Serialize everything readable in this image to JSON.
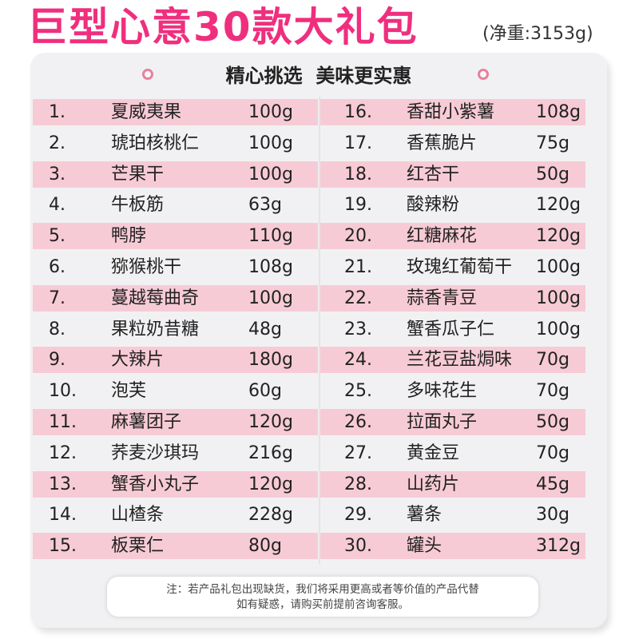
{
  "header": {
    "title": "巨型心意30款大礼包",
    "net_weight": "(净重:3153g)"
  },
  "board": {
    "subtitle": "精心挑选  美味更实惠"
  },
  "items_left": [
    {
      "num": "1.",
      "name": "夏威夷果",
      "weight": "100g"
    },
    {
      "num": "2.",
      "name": "琥珀核桃仁",
      "weight": "100g"
    },
    {
      "num": "3.",
      "name": "芒果干",
      "weight": "100g"
    },
    {
      "num": "4.",
      "name": "牛板筋",
      "weight": "63g"
    },
    {
      "num": "5.",
      "name": "鸭脖",
      "weight": "110g"
    },
    {
      "num": "6.",
      "name": "猕猴桃干",
      "weight": "108g"
    },
    {
      "num": "7.",
      "name": "蔓越莓曲奇",
      "weight": "100g"
    },
    {
      "num": "8.",
      "name": "果粒奶昔糖",
      "weight": "48g"
    },
    {
      "num": "9.",
      "name": "大辣片",
      "weight": "180g"
    },
    {
      "num": "10.",
      "name": "泡芙",
      "weight": "60g"
    },
    {
      "num": "11.",
      "name": "麻薯团子",
      "weight": "120g"
    },
    {
      "num": "12.",
      "name": "荞麦沙琪玛",
      "weight": "216g"
    },
    {
      "num": "13.",
      "name": "蟹香小丸子",
      "weight": "120g"
    },
    {
      "num": "14.",
      "name": "山楂条",
      "weight": "228g"
    },
    {
      "num": "15.",
      "name": "板栗仁",
      "weight": "80g"
    }
  ],
  "items_right": [
    {
      "num": "16.",
      "name": "香甜小紫薯",
      "weight": "108g"
    },
    {
      "num": "17.",
      "name": "香蕉脆片",
      "weight": "75g"
    },
    {
      "num": "18.",
      "name": "红杏干",
      "weight": "50g"
    },
    {
      "num": "19.",
      "name": "酸辣粉",
      "weight": "120g"
    },
    {
      "num": "20.",
      "name": "红糖麻花",
      "weight": "120g"
    },
    {
      "num": "21.",
      "name": "玫瑰红葡萄干",
      "weight": "100g"
    },
    {
      "num": "22.",
      "name": "蒜香青豆",
      "weight": "100g"
    },
    {
      "num": "23.",
      "name": "蟹香瓜子仁",
      "weight": "100g"
    },
    {
      "num": "24.",
      "name": "兰花豆盐焗味",
      "weight": "70g"
    },
    {
      "num": "25.",
      "name": "多味花生",
      "weight": "70g"
    },
    {
      "num": "26.",
      "name": "拉面丸子",
      "weight": "50g"
    },
    {
      "num": "27.",
      "name": "黄金豆",
      "weight": "70g"
    },
    {
      "num": "28.",
      "name": "山药片",
      "weight": "45g"
    },
    {
      "num": "29.",
      "name": "薯条",
      "weight": "30g"
    },
    {
      "num": "30.",
      "name": "罐头",
      "weight": "312g"
    }
  ],
  "note": {
    "line1": "注：若产品礼包出现缺货，我们将采用更高或者等价值的产品代替",
    "line2": "如有疑惑，请购买前提前咨询客服。"
  },
  "colors": {
    "title": "#ef2f7e",
    "row_stripe": "#f5c4cf",
    "board": "#f1f1f3"
  }
}
